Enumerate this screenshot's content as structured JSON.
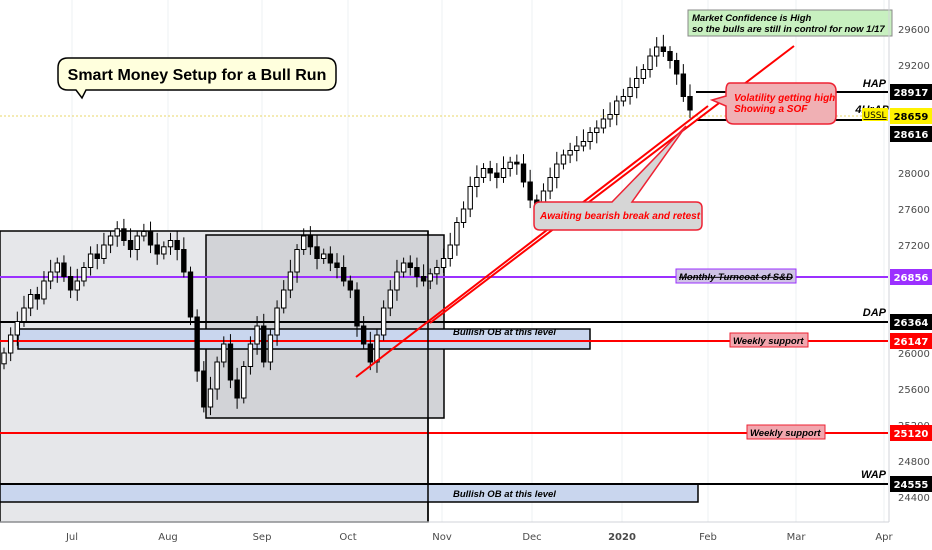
{
  "chart_data": {
    "type": "candlestick",
    "title": "Smart Money Setup for a Bull Run",
    "ylim": [
      24150,
      29950
    ],
    "y_ticks": [
      24400,
      24800,
      25200,
      25600,
      26000,
      27200,
      27600,
      28000,
      29200,
      29600
    ],
    "x_ticks": [
      "Jul",
      "Aug",
      "Sep",
      "Oct",
      "Nov",
      "Dec",
      "2020",
      "Feb",
      "Mar",
      "Apr"
    ],
    "price_close": [
      26000,
      26200,
      26350,
      26500,
      26650,
      26600,
      26800,
      26900,
      27000,
      26850,
      26700,
      26800,
      26950,
      27100,
      27050,
      27200,
      27300,
      27380,
      27250,
      27150,
      27300,
      27350,
      27200,
      27100,
      27180,
      27250,
      27150,
      26900,
      26400,
      25800,
      25400,
      25600,
      25900,
      26100,
      25700,
      25500,
      25850,
      26100,
      26300,
      25900,
      26200,
      26500,
      26700,
      26900,
      27150,
      27300,
      27180,
      27050,
      27100,
      27000,
      26950,
      26800,
      26700,
      26300,
      26100,
      25900,
      26200,
      26500,
      26700,
      26900,
      27000,
      26950,
      26850,
      26800,
      26880,
      26950,
      27050,
      27200,
      27450,
      27600,
      27850,
      27950,
      28050,
      28000,
      27950,
      28050,
      28120,
      28100,
      27900,
      27700,
      27650,
      27800,
      27950,
      28100,
      28200,
      28250,
      28300,
      28350,
      28450,
      28500,
      28600,
      28650,
      28800,
      28850,
      28950,
      29050,
      29150,
      29300,
      29400,
      29350,
      29250,
      29100,
      28850,
      28700
    ],
    "levels": [
      {
        "label": "HAP",
        "value": 28917,
        "color": "#000000"
      },
      {
        "label": "4HrAP",
        "value": 28616,
        "color": "#000000"
      },
      {
        "label": "Monthly Turncoat of S&D",
        "value": 26856,
        "color": "#9b30ff"
      },
      {
        "label": "DAP",
        "value": 26364,
        "color": "#000000"
      },
      {
        "label": "Weekly support",
        "value": 26147,
        "color": "#ff0000"
      },
      {
        "label": "Weekly support",
        "value": 25120,
        "color": "#ff0000"
      },
      {
        "label": "WAP",
        "value": 24555,
        "color": "#000000"
      }
    ],
    "current_price": {
      "value": 28659,
      "label": "USSL"
    },
    "annotations": [
      "Market Confidence is High",
      "so the bulls are still in control for now 1/17",
      "Volatility getting high",
      "Showing a SOF",
      "Awaiting bearish break and retest",
      "Bullish OB at this level",
      "Bullish OB at this level"
    ]
  },
  "colors": {
    "candle": "#000000",
    "support": "#ff0000",
    "turncoat": "#9b30ff",
    "ob_fill": "#c9d6ee",
    "zone_fill": "#e6e7ea",
    "current": "#fff200"
  }
}
